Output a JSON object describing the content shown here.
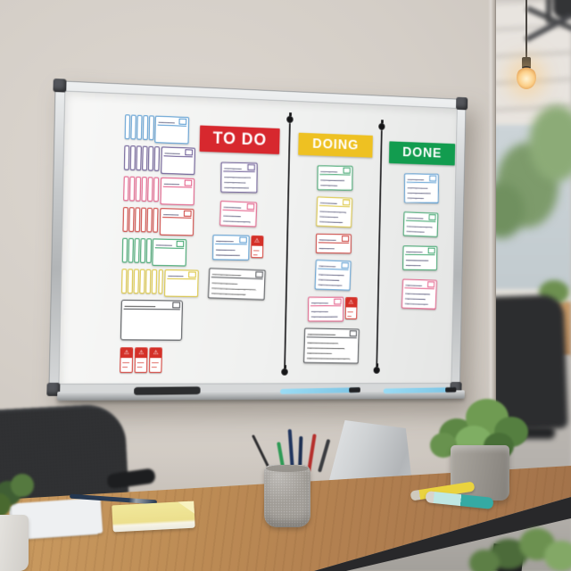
{
  "page": {
    "type": "photograph",
    "subject": "Kanban scrum whiteboard hanging on an office wall above a wooden desk"
  },
  "board": {
    "surface_color": "#f3f4f3",
    "frame_color": "#c4c7c9",
    "warning_glyph": "⚠",
    "columns": [
      {
        "id": "todo",
        "label": "TO DO",
        "header_color": "#d7282e",
        "header_text_color": "#ffffff",
        "cards": [
          {
            "color": "purple",
            "lines": 3
          },
          {
            "color": "pink",
            "lines": 2
          },
          {
            "color": "blue",
            "lines": 2,
            "warning": true
          },
          {
            "color": "dark",
            "wide": true,
            "lines": 3
          }
        ]
      },
      {
        "id": "doing",
        "label": "DOING",
        "header_color": "#eec122",
        "header_text_color": "#ffffff",
        "cards": [
          {
            "color": "green",
            "lines": 2
          },
          {
            "color": "yellow",
            "lines": 3
          },
          {
            "color": "red",
            "lines": 1
          },
          {
            "color": "blue",
            "lines": 3
          },
          {
            "color": "pink",
            "lines": 2,
            "warning": true
          },
          {
            "color": "dark",
            "wide": true,
            "lines": 4
          }
        ]
      },
      {
        "id": "done",
        "label": "DONE",
        "header_color": "#129c4f",
        "header_text_color": "#ffffff",
        "cards": [
          {
            "color": "blue",
            "lines": 3
          },
          {
            "color": "green",
            "lines": 2
          },
          {
            "color": "green",
            "lines": 2
          },
          {
            "color": "pink",
            "lines": 3
          }
        ]
      }
    ],
    "template_stacks": [
      {
        "color": "blue",
        "count": 6
      },
      {
        "color": "purple",
        "count": 7
      },
      {
        "color": "pink",
        "count": 7
      },
      {
        "color": "red",
        "count": 7
      },
      {
        "color": "green",
        "count": 6
      },
      {
        "color": "yellow",
        "count": 8
      }
    ],
    "blank_card": {
      "color": "dark"
    },
    "warning_tag_stack": {
      "count": 3
    },
    "palette": {
      "blue": "#4e95cf",
      "purple": "#5c4b8a",
      "pink": "#e1507e",
      "red": "#c9332e",
      "green": "#2f9e62",
      "yellow": "#d9c12f",
      "dark": "#43464b",
      "warning": "#d43028",
      "ink": "#3d3d63",
      "ink_dark": "#3a3a3a"
    },
    "tray_items": [
      "eraser",
      "marker",
      "marker"
    ],
    "marker_color": "#8fd0ec"
  },
  "desk": {
    "wood_color": "#b8874f",
    "items": [
      "office chair",
      "documents",
      "pen",
      "yellow notepad",
      "pencil cup with pens",
      "laptop",
      "potted plant",
      "yellow highlighter",
      "teal highlighter",
      "small plant in white pot"
    ]
  },
  "background": {
    "wall_color": "#d4cec7",
    "items": [
      "pendant lamp",
      "window with trees",
      "office desk with monitors",
      "office chairs",
      "plant"
    ]
  }
}
